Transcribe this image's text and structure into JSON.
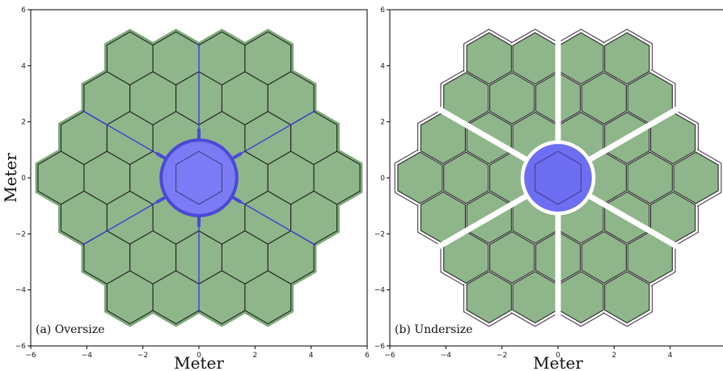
{
  "chart_data": [
    {
      "type": "scatter",
      "annotation": "(a) Oversize",
      "xlabel": "Meter",
      "ylabel": "Meter",
      "xlim": [
        -6,
        6
      ],
      "ylim": [
        -6,
        6
      ],
      "xticks": [
        -6,
        -4,
        -2,
        0,
        2,
        4,
        6
      ],
      "yticks": [
        -6,
        -4,
        -2,
        0,
        2,
        4,
        6
      ],
      "grid": false,
      "segment_flat_to_flat_m": 1.64,
      "hexagon_rings": 3,
      "central_obscuration_radius_m": 1.35,
      "spider_arms": 6,
      "colors": {
        "segments": "#8fb58a",
        "segment_edge": "#1a1a1a",
        "oversize_border": "#7ea87a",
        "obscuration": "#7b7bf5",
        "obscuration_edge": "#4a4ad6",
        "spiders": "#2f2fe0"
      }
    },
    {
      "type": "scatter",
      "annotation": "(b) Undersize",
      "xlabel": "Meter",
      "ylabel": "",
      "xlim": [
        -6,
        6
      ],
      "ylim": [
        -6,
        6
      ],
      "xticks": [
        -6,
        -4,
        -2,
        0,
        2,
        4
      ],
      "yticks": [
        -6,
        -4,
        -2,
        0,
        2,
        4,
        6
      ],
      "grid": false,
      "segment_flat_to_flat_m": 1.64,
      "hexagon_rings": 3,
      "central_obscuration_radius_m": 1.25,
      "spider_arms": 6,
      "colors": {
        "segments": "#8fb58a",
        "segment_edge": "#1a1a1a",
        "pupil_outline": "#5a4a5a",
        "obscuration": "#6e6ef2",
        "spiders": "#2f2fe0",
        "gap": "#ffffff"
      }
    }
  ]
}
